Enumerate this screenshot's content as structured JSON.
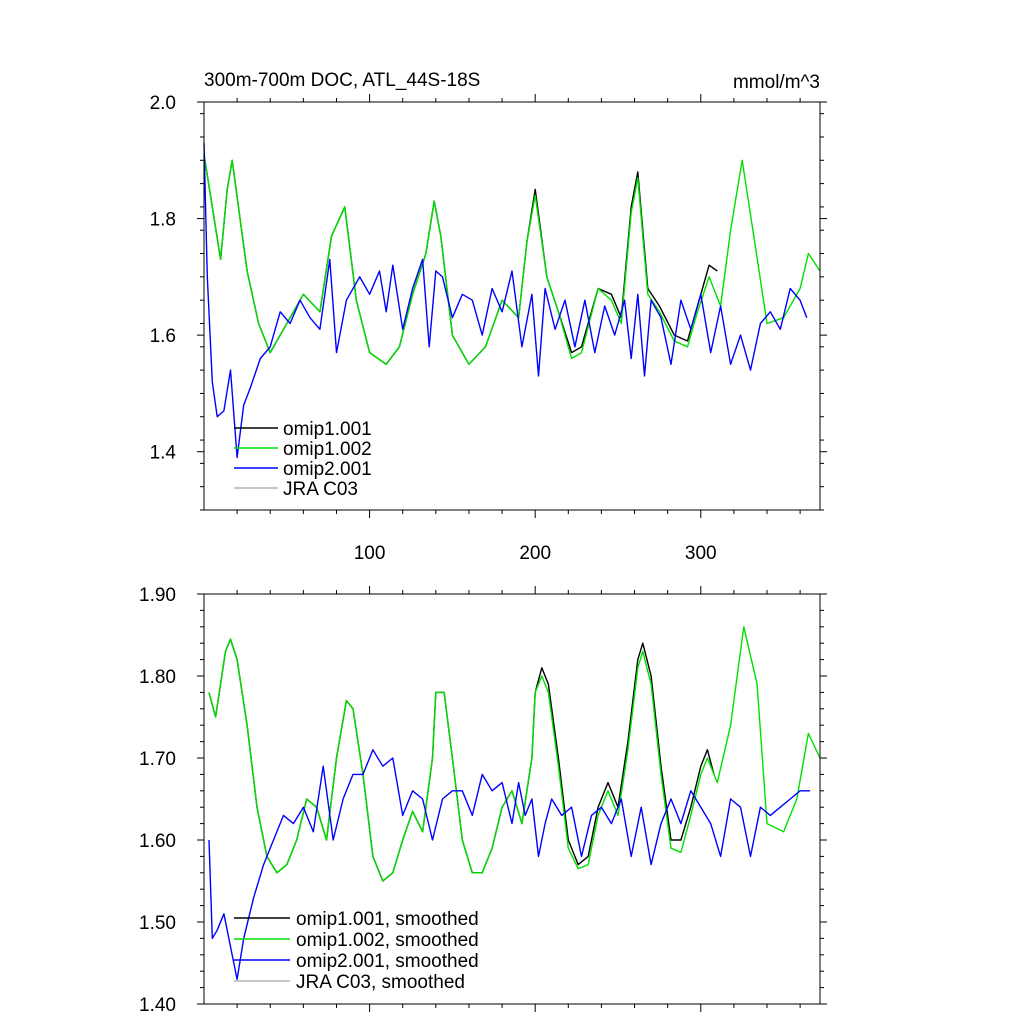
{
  "chart_data": [
    {
      "type": "line",
      "title": "300m-700m DOC, ATL_44S-18S",
      "units": "mmol/m^3",
      "xlim": [
        0,
        372
      ],
      "ylim": [
        1.3,
        2.0
      ],
      "xticks": [
        100,
        200,
        300
      ],
      "yticks": [
        1.4,
        1.6,
        1.8,
        2.0
      ],
      "ytick_labels": [
        "1.4",
        "1.6",
        "1.8",
        "2.0"
      ],
      "legend": [
        "omip1.001",
        "omip1.002",
        "omip2.001",
        "JRA C03"
      ],
      "series": [
        {
          "name": "omip1.001",
          "color": "#000000",
          "x": [
            0,
            10,
            14,
            17,
            26,
            33,
            40,
            48,
            60,
            70,
            77,
            85,
            92,
            100,
            110,
            118,
            126,
            134,
            139,
            143,
            150,
            160,
            170,
            180,
            190,
            195,
            200,
            207,
            214,
            222,
            228,
            238,
            246,
            252,
            258,
            262,
            268,
            275,
            284,
            292,
            298,
            305,
            310
          ],
          "y": [
            1.91,
            1.73,
            1.85,
            1.9,
            1.71,
            1.62,
            1.57,
            1.61,
            1.67,
            1.64,
            1.77,
            1.82,
            1.66,
            1.57,
            1.55,
            1.58,
            1.67,
            1.74,
            1.83,
            1.77,
            1.6,
            1.55,
            1.58,
            1.66,
            1.63,
            1.76,
            1.85,
            1.7,
            1.64,
            1.57,
            1.58,
            1.68,
            1.67,
            1.63,
            1.82,
            1.88,
            1.68,
            1.65,
            1.6,
            1.59,
            1.65,
            1.72,
            1.71
          ]
        },
        {
          "name": "omip1.002",
          "color": "#00e000",
          "x": [
            0,
            10,
            14,
            17,
            26,
            33,
            40,
            48,
            60,
            70,
            77,
            85,
            92,
            100,
            110,
            118,
            126,
            134,
            139,
            143,
            150,
            160,
            170,
            180,
            190,
            195,
            200,
            207,
            214,
            222,
            228,
            238,
            246,
            252,
            258,
            262,
            268,
            275,
            284,
            292,
            298,
            305,
            312,
            318,
            325,
            332,
            340,
            350,
            360,
            365,
            372
          ],
          "y": [
            1.91,
            1.73,
            1.85,
            1.9,
            1.71,
            1.62,
            1.57,
            1.61,
            1.67,
            1.64,
            1.77,
            1.82,
            1.66,
            1.57,
            1.55,
            1.58,
            1.67,
            1.74,
            1.83,
            1.77,
            1.6,
            1.55,
            1.58,
            1.66,
            1.63,
            1.76,
            1.84,
            1.7,
            1.64,
            1.56,
            1.57,
            1.68,
            1.66,
            1.62,
            1.81,
            1.87,
            1.67,
            1.64,
            1.59,
            1.58,
            1.64,
            1.7,
            1.65,
            1.78,
            1.9,
            1.77,
            1.62,
            1.63,
            1.68,
            1.74,
            1.71
          ]
        },
        {
          "name": "omip2.001",
          "color": "#0000ff",
          "x": [
            0,
            2,
            5,
            8,
            12,
            16,
            20,
            24,
            28,
            34,
            40,
            46,
            52,
            58,
            64,
            70,
            76,
            80,
            86,
            94,
            100,
            106,
            110,
            114,
            120,
            126,
            132,
            136,
            140,
            144,
            150,
            156,
            162,
            168,
            174,
            180,
            186,
            192,
            198,
            202,
            206,
            212,
            218,
            224,
            230,
            236,
            242,
            248,
            254,
            258,
            262,
            266,
            270,
            276,
            282,
            288,
            294,
            300,
            306,
            312,
            318,
            324,
            330,
            336,
            342,
            348,
            354,
            360,
            364
          ],
          "y": [
            1.93,
            1.7,
            1.52,
            1.46,
            1.47,
            1.54,
            1.39,
            1.48,
            1.51,
            1.56,
            1.58,
            1.64,
            1.62,
            1.66,
            1.63,
            1.61,
            1.73,
            1.57,
            1.66,
            1.7,
            1.67,
            1.71,
            1.64,
            1.72,
            1.61,
            1.68,
            1.73,
            1.58,
            1.71,
            1.7,
            1.63,
            1.67,
            1.66,
            1.6,
            1.68,
            1.64,
            1.71,
            1.58,
            1.67,
            1.53,
            1.68,
            1.61,
            1.66,
            1.58,
            1.66,
            1.57,
            1.65,
            1.6,
            1.66,
            1.56,
            1.67,
            1.53,
            1.66,
            1.63,
            1.55,
            1.66,
            1.61,
            1.67,
            1.57,
            1.65,
            1.55,
            1.6,
            1.54,
            1.62,
            1.64,
            1.61,
            1.68,
            1.66,
            1.63
          ]
        },
        {
          "name": "JRA C03",
          "color": "#b4b4b4",
          "x": [],
          "y": []
        }
      ]
    },
    {
      "type": "line",
      "title": "",
      "xlim": [
        0,
        372
      ],
      "ylim": [
        1.4,
        1.9
      ],
      "xticks": [
        100,
        200,
        300
      ],
      "yticks": [
        1.4,
        1.5,
        1.6,
        1.7,
        1.8,
        1.9
      ],
      "ytick_labels": [
        "1.40",
        "1.50",
        "1.60",
        "1.70",
        "1.80",
        "1.90"
      ],
      "legend": [
        "omip1.001, smoothed",
        "omip1.002, smoothed",
        "omip2.001, smoothed",
        "JRA C03, smoothed"
      ],
      "series": [
        {
          "name": "omip1.001, smoothed",
          "color": "#000000",
          "x": [
            3,
            7,
            13,
            16,
            20,
            26,
            32,
            38,
            44,
            50,
            56,
            62,
            68,
            74,
            80,
            86,
            90,
            96,
            102,
            108,
            114,
            120,
            126,
            132,
            138,
            140,
            145,
            150,
            156,
            162,
            168,
            174,
            180,
            186,
            192,
            198,
            200,
            204,
            208,
            214,
            220,
            226,
            232,
            238,
            244,
            250,
            256,
            262,
            265,
            270,
            276,
            282,
            288,
            294,
            300,
            304,
            308
          ],
          "y": [
            1.78,
            1.75,
            1.83,
            1.845,
            1.82,
            1.74,
            1.64,
            1.58,
            1.56,
            1.57,
            1.6,
            1.65,
            1.64,
            1.6,
            1.7,
            1.77,
            1.76,
            1.68,
            1.58,
            1.55,
            1.56,
            1.6,
            1.635,
            1.61,
            1.7,
            1.78,
            1.78,
            1.7,
            1.6,
            1.56,
            1.56,
            1.59,
            1.64,
            1.66,
            1.62,
            1.7,
            1.78,
            1.81,
            1.79,
            1.7,
            1.6,
            1.57,
            1.58,
            1.64,
            1.67,
            1.64,
            1.72,
            1.82,
            1.84,
            1.8,
            1.69,
            1.6,
            1.6,
            1.64,
            1.69,
            1.71,
            1.68
          ]
        },
        {
          "name": "omip1.002, smoothed",
          "color": "#00e000",
          "x": [
            3,
            7,
            13,
            16,
            20,
            26,
            32,
            38,
            44,
            50,
            56,
            62,
            68,
            74,
            80,
            86,
            90,
            96,
            102,
            108,
            114,
            120,
            126,
            132,
            138,
            140,
            145,
            150,
            156,
            162,
            168,
            174,
            180,
            186,
            192,
            198,
            200,
            204,
            208,
            214,
            220,
            226,
            232,
            238,
            244,
            250,
            256,
            262,
            265,
            270,
            276,
            282,
            288,
            294,
            300,
            304,
            310,
            318,
            326,
            334,
            340,
            350,
            358,
            365,
            372
          ],
          "y": [
            1.78,
            1.75,
            1.83,
            1.845,
            1.82,
            1.74,
            1.64,
            1.58,
            1.56,
            1.57,
            1.6,
            1.65,
            1.64,
            1.6,
            1.7,
            1.77,
            1.76,
            1.68,
            1.58,
            1.55,
            1.56,
            1.6,
            1.635,
            1.61,
            1.7,
            1.78,
            1.78,
            1.7,
            1.6,
            1.56,
            1.56,
            1.59,
            1.64,
            1.66,
            1.62,
            1.7,
            1.78,
            1.8,
            1.78,
            1.69,
            1.59,
            1.565,
            1.57,
            1.63,
            1.66,
            1.63,
            1.71,
            1.81,
            1.83,
            1.79,
            1.68,
            1.59,
            1.585,
            1.63,
            1.68,
            1.7,
            1.67,
            1.74,
            1.86,
            1.79,
            1.62,
            1.61,
            1.65,
            1.73,
            1.7
          ]
        },
        {
          "name": "omip2.001, smoothed",
          "color": "#0000ff",
          "x": [
            3,
            5,
            8,
            12,
            16,
            20,
            24,
            30,
            36,
            42,
            48,
            54,
            60,
            66,
            72,
            78,
            84,
            90,
            96,
            102,
            108,
            114,
            120,
            126,
            132,
            138,
            144,
            150,
            156,
            162,
            168,
            174,
            180,
            186,
            190,
            194,
            198,
            202,
            206,
            210,
            216,
            222,
            228,
            234,
            240,
            246,
            252,
            258,
            264,
            270,
            276,
            282,
            288,
            294,
            300,
            306,
            312,
            318,
            324,
            330,
            336,
            342,
            348,
            354,
            360,
            366
          ],
          "y": [
            1.6,
            1.48,
            1.49,
            1.51,
            1.47,
            1.43,
            1.48,
            1.53,
            1.57,
            1.6,
            1.63,
            1.62,
            1.64,
            1.61,
            1.69,
            1.6,
            1.65,
            1.68,
            1.68,
            1.71,
            1.69,
            1.7,
            1.63,
            1.66,
            1.65,
            1.6,
            1.65,
            1.66,
            1.66,
            1.63,
            1.68,
            1.66,
            1.67,
            1.62,
            1.67,
            1.63,
            1.65,
            1.58,
            1.62,
            1.65,
            1.63,
            1.64,
            1.58,
            1.63,
            1.64,
            1.62,
            1.65,
            1.58,
            1.64,
            1.57,
            1.62,
            1.65,
            1.62,
            1.66,
            1.64,
            1.62,
            1.58,
            1.65,
            1.64,
            1.58,
            1.64,
            1.63,
            1.64,
            1.65,
            1.66,
            1.66
          ]
        },
        {
          "name": "JRA C03, smoothed",
          "color": "#b4b4b4",
          "x": [],
          "y": []
        }
      ]
    }
  ]
}
